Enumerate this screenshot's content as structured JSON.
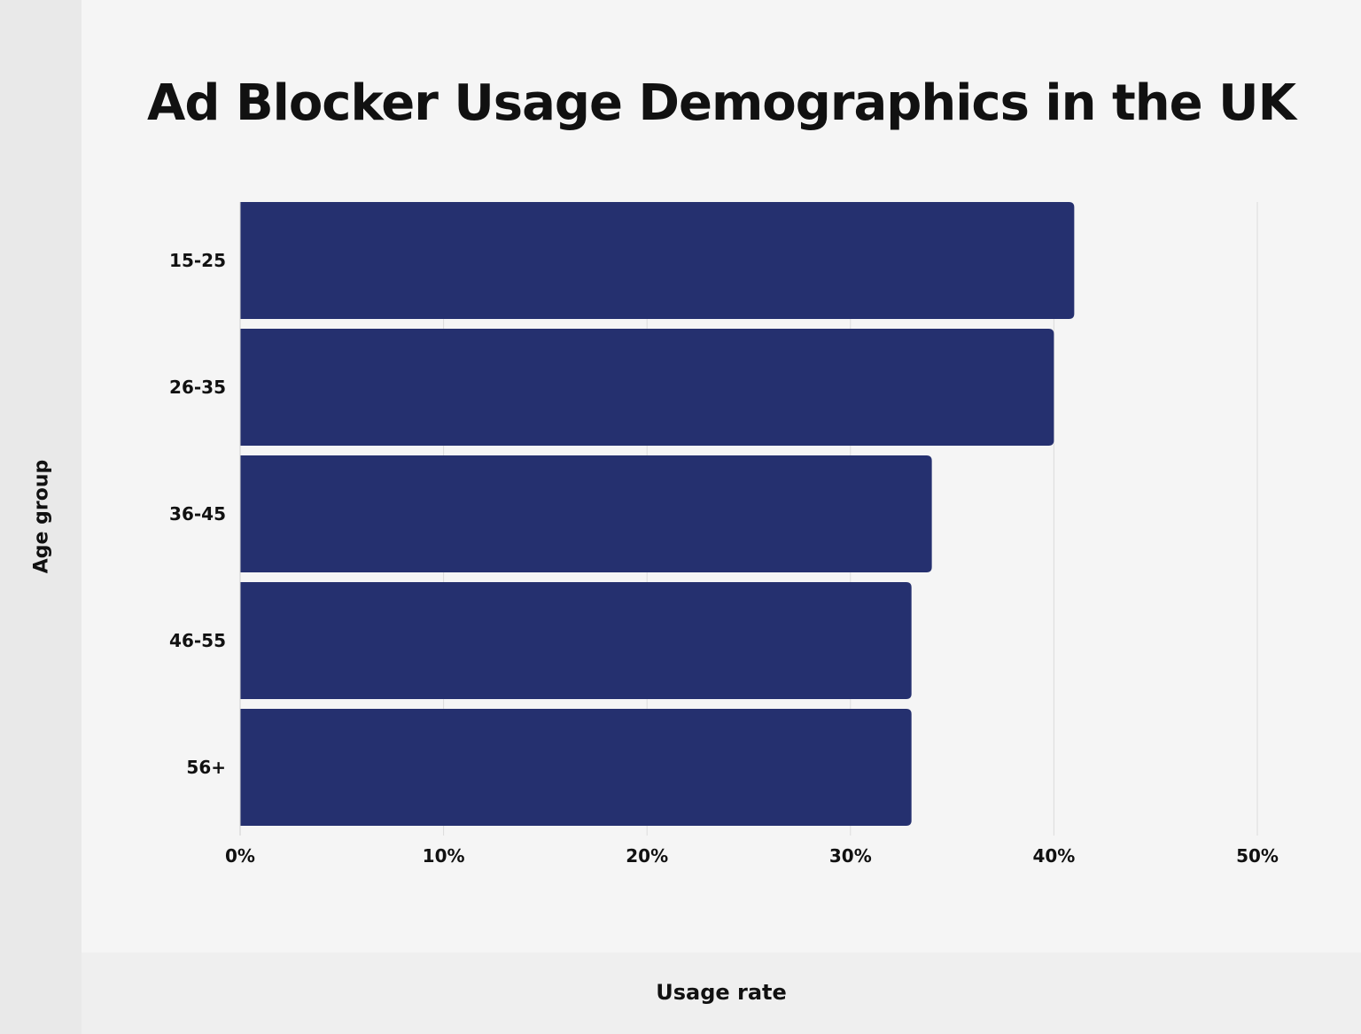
{
  "chart_data": {
    "type": "bar",
    "orientation": "horizontal",
    "title": "Ad Blocker Usage Demographics in the UK",
    "xlabel": "Usage rate",
    "ylabel": "Age group",
    "categories": [
      "15-25",
      "26-35",
      "36-45",
      "46-55",
      "56+"
    ],
    "values": [
      41,
      40,
      34,
      33,
      33
    ],
    "unit": "%",
    "xlim": [
      0,
      50
    ],
    "xticks": [
      "0%",
      "10%",
      "20%",
      "30%",
      "40%",
      "50%"
    ],
    "grid": "vertical",
    "legend": "none",
    "bar_color": "#25306f"
  }
}
